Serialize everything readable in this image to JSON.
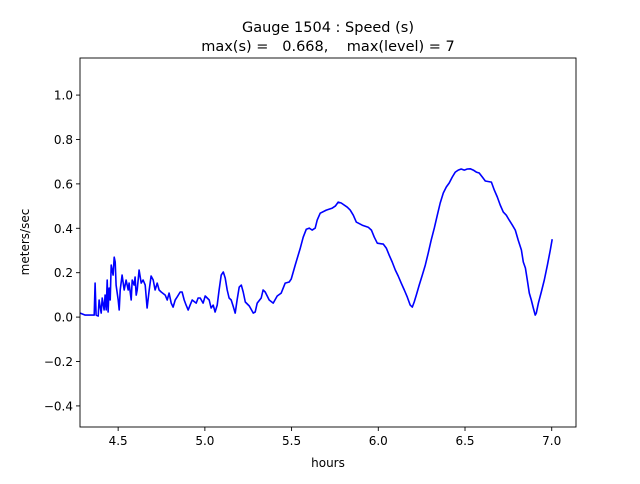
{
  "chart_data": {
    "type": "line",
    "title": "Gauge 1504 : Speed (s)",
    "subtitle": "max(s) =   0.668,    max(level) = 7",
    "xlabel": "hours",
    "ylabel": "meters/sec",
    "xlim": [
      4.28,
      7.14
    ],
    "ylim": [
      -0.495,
      1.167
    ],
    "xticks": [
      4.5,
      5.0,
      5.5,
      6.0,
      6.5,
      7.0
    ],
    "xtick_labels": [
      "4.5",
      "5.0",
      "5.5",
      "6.0",
      "6.5",
      "7.0"
    ],
    "yticks": [
      -0.4,
      -0.2,
      0.0,
      0.2,
      0.4,
      0.6,
      0.8,
      1.0
    ],
    "ytick_labels": [
      "−0.4",
      "−0.2",
      "0.0",
      "0.2",
      "0.4",
      "0.6",
      "0.8",
      "1.0"
    ],
    "grid": false,
    "series": [
      {
        "name": "speed",
        "color": "#0000ff",
        "x": [
          4.281,
          4.31,
          4.362,
          4.367,
          4.373,
          4.385,
          4.39,
          4.402,
          4.408,
          4.419,
          4.425,
          4.431,
          4.437,
          4.442,
          4.448,
          4.454,
          4.46,
          4.471,
          4.477,
          4.483,
          4.488,
          4.5,
          4.506,
          4.512,
          4.523,
          4.535,
          4.546,
          4.558,
          4.563,
          4.575,
          4.581,
          4.592,
          4.598,
          4.604,
          4.61,
          4.621,
          4.633,
          4.644,
          4.656,
          4.667,
          4.679,
          4.69,
          4.702,
          4.713,
          4.725,
          4.736,
          4.748,
          4.771,
          4.783,
          4.794,
          4.806,
          4.817,
          4.829,
          4.84,
          4.858,
          4.869,
          4.881,
          4.892,
          4.904,
          4.915,
          4.927,
          4.95,
          4.961,
          4.973,
          4.99,
          5.002,
          5.025,
          5.036,
          5.048,
          5.059,
          5.071,
          5.082,
          5.094,
          5.106,
          5.117,
          5.129,
          5.14,
          5.152,
          5.163,
          5.175,
          5.186,
          5.198,
          5.21,
          5.221,
          5.233,
          5.256,
          5.279,
          5.29,
          5.302,
          5.325,
          5.336,
          5.348,
          5.371,
          5.394,
          5.417,
          5.44,
          5.463,
          5.486,
          5.498,
          5.521,
          5.55,
          5.567,
          5.585,
          5.602,
          5.619,
          5.636,
          5.648,
          5.665,
          5.7,
          5.735,
          5.752,
          5.769,
          5.786,
          5.821,
          5.838,
          5.856,
          5.873,
          5.908,
          5.942,
          5.96,
          5.977,
          5.994,
          6.029,
          6.046,
          6.063,
          6.08,
          6.098,
          6.115,
          6.132,
          6.15,
          6.167,
          6.184,
          6.196,
          6.207,
          6.219,
          6.236,
          6.254,
          6.271,
          6.288,
          6.305,
          6.323,
          6.34,
          6.357,
          6.375,
          6.392,
          6.409,
          6.427,
          6.444,
          6.461,
          6.478,
          6.496,
          6.513,
          6.53,
          6.548,
          6.565,
          6.582,
          6.6,
          6.617,
          6.652,
          6.669,
          6.686,
          6.703,
          6.721,
          6.738,
          6.755,
          6.773,
          6.79,
          6.807,
          6.825,
          6.836,
          6.848,
          6.859,
          6.871,
          6.882,
          6.894,
          6.905,
          6.911,
          6.923,
          6.94,
          6.957,
          6.975,
          6.992,
          7.003
        ],
        "y": [
          0.018,
          0.009,
          0.009,
          0.153,
          0.009,
          0.005,
          0.077,
          0.018,
          0.086,
          0.032,
          0.099,
          0.032,
          0.167,
          0.023,
          0.131,
          0.077,
          0.234,
          0.189,
          0.27,
          0.248,
          0.144,
          0.077,
          0.032,
          0.122,
          0.189,
          0.122,
          0.167,
          0.122,
          0.153,
          0.077,
          0.167,
          0.144,
          0.18,
          0.099,
          0.122,
          0.212,
          0.153,
          0.167,
          0.144,
          0.041,
          0.122,
          0.185,
          0.167,
          0.122,
          0.153,
          0.122,
          0.113,
          0.099,
          0.077,
          0.108,
          0.063,
          0.045,
          0.077,
          0.09,
          0.113,
          0.113,
          0.077,
          0.054,
          0.032,
          0.054,
          0.077,
          0.063,
          0.086,
          0.086,
          0.063,
          0.095,
          0.077,
          0.041,
          0.054,
          0.023,
          0.054,
          0.122,
          0.189,
          0.203,
          0.176,
          0.122,
          0.086,
          0.077,
          0.05,
          0.018,
          0.077,
          0.135,
          0.144,
          0.113,
          0.068,
          0.05,
          0.018,
          0.023,
          0.063,
          0.086,
          0.122,
          0.113,
          0.077,
          0.063,
          0.095,
          0.108,
          0.153,
          0.158,
          0.171,
          0.234,
          0.311,
          0.36,
          0.396,
          0.401,
          0.392,
          0.401,
          0.437,
          0.468,
          0.482,
          0.491,
          0.5,
          0.518,
          0.514,
          0.495,
          0.482,
          0.459,
          0.428,
          0.414,
          0.405,
          0.392,
          0.36,
          0.333,
          0.329,
          0.311,
          0.279,
          0.248,
          0.212,
          0.185,
          0.153,
          0.122,
          0.09,
          0.054,
          0.045,
          0.068,
          0.099,
          0.144,
          0.189,
          0.234,
          0.288,
          0.347,
          0.401,
          0.459,
          0.514,
          0.559,
          0.586,
          0.604,
          0.631,
          0.653,
          0.662,
          0.667,
          0.662,
          0.667,
          0.668,
          0.662,
          0.653,
          0.649,
          0.631,
          0.613,
          0.608,
          0.572,
          0.541,
          0.505,
          0.473,
          0.459,
          0.437,
          0.414,
          0.392,
          0.347,
          0.302,
          0.248,
          0.221,
          0.167,
          0.108,
          0.077,
          0.041,
          0.009,
          0.018,
          0.063,
          0.113,
          0.167,
          0.234,
          0.302,
          0.351
        ]
      }
    ]
  }
}
